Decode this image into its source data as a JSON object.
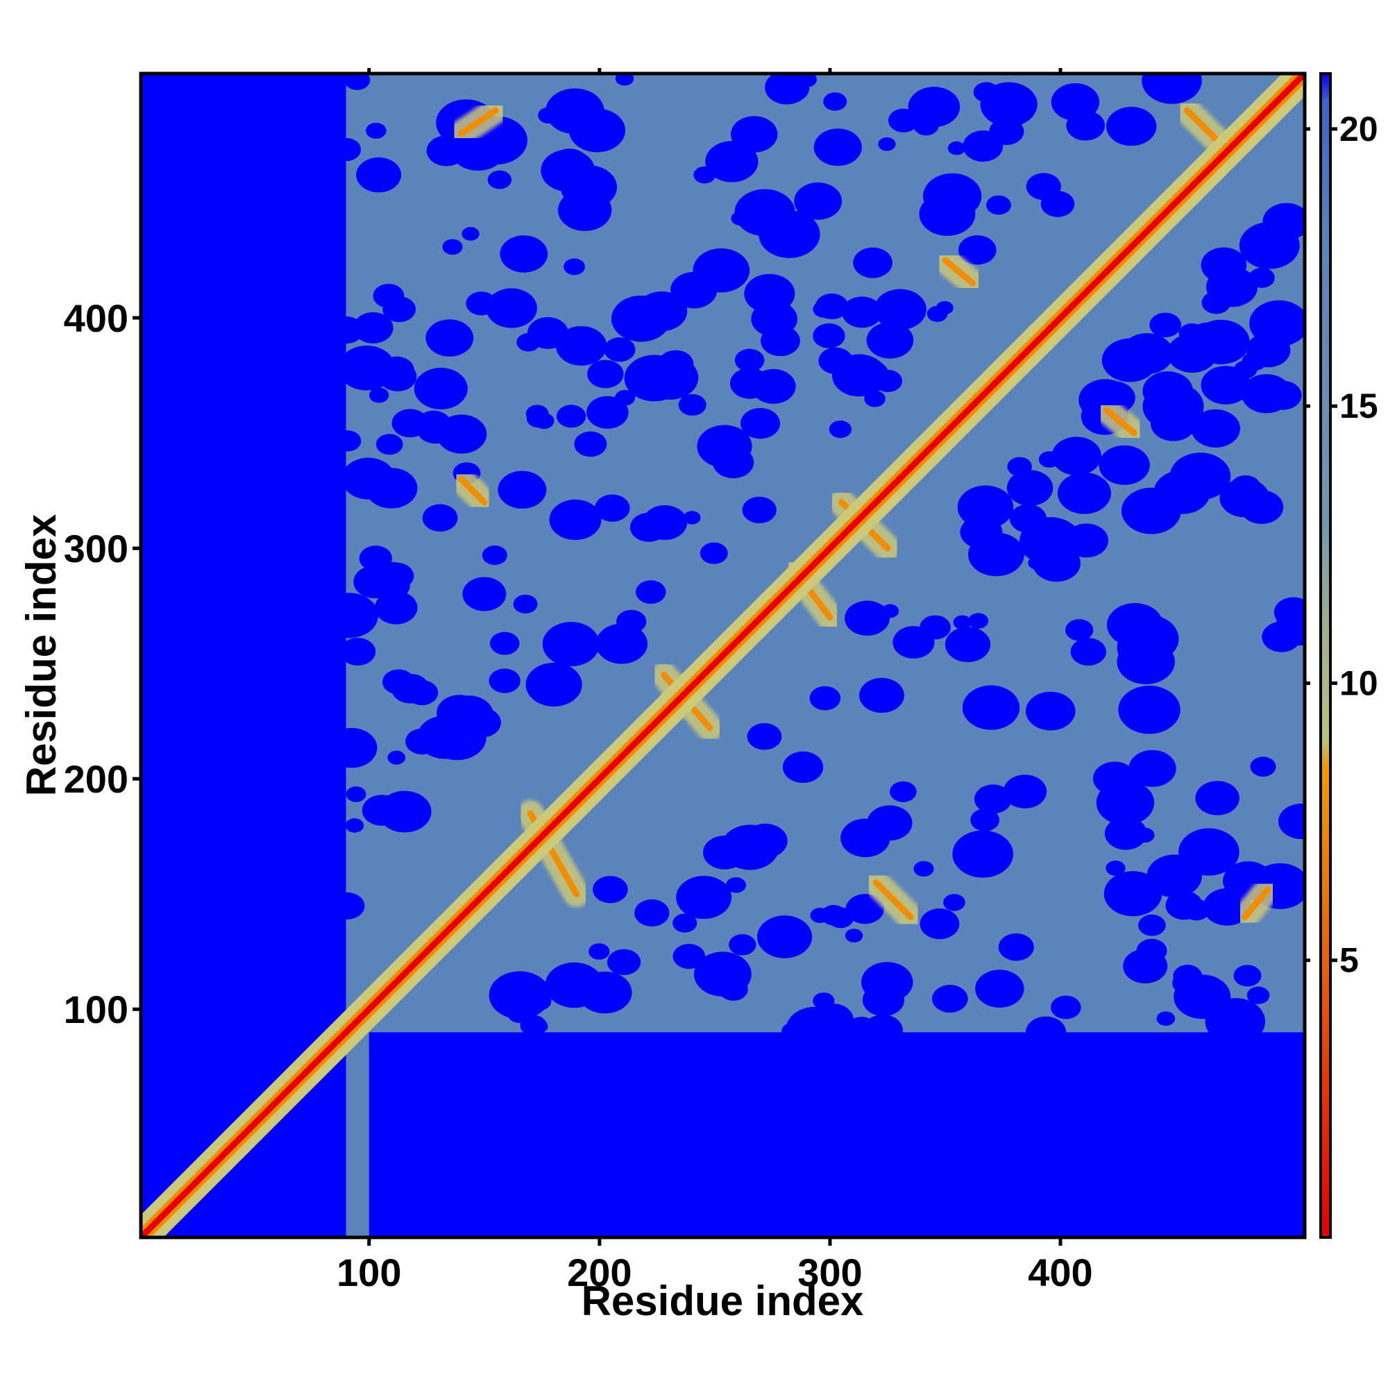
{
  "chart_data": {
    "type": "heatmap",
    "title": "",
    "xlabel": "Residue index",
    "ylabel": "Residue index",
    "xlim": [
      1,
      506
    ],
    "ylim": [
      1,
      506
    ],
    "x_ticks": [
      100,
      200,
      300,
      400
    ],
    "y_ticks": [
      100,
      200,
      300,
      400
    ],
    "colorbar": {
      "range": [
        0,
        21
      ],
      "ticks": [
        5,
        10,
        15,
        20
      ],
      "stops": [
        {
          "value": 0,
          "color": "#e60000"
        },
        {
          "value": 5,
          "color": "#e8620a"
        },
        {
          "value": 8.5,
          "color": "#f29a00"
        },
        {
          "value": 9,
          "color": "#b9c380"
        },
        {
          "value": 11,
          "color": "#9fae8f"
        },
        {
          "value": 13,
          "color": "#6f97b5"
        },
        {
          "value": 18,
          "color": "#5b84ba"
        },
        {
          "value": 20.5,
          "color": "#3f62c8"
        },
        {
          "value": 21,
          "color": "#0000ff"
        }
      ]
    },
    "colors": {
      "far": "#0000ff",
      "mid": "#5b84ba",
      "near": "#ccc97a",
      "contact": "#f28c00",
      "diagonal": "#e60000"
    },
    "regions": {
      "lower_blue_block_y_max": 90,
      "left_blue_block_x_max": 90
    },
    "contact_features": [
      {
        "x1": 236,
        "y1": 236,
        "x2": 236,
        "y2": 236,
        "kind": "diagonal"
      },
      {
        "x1": 170,
        "y1": 185,
        "x2": 190,
        "y2": 150,
        "kind": "antiparallel"
      },
      {
        "x1": 228,
        "y1": 245,
        "x2": 248,
        "y2": 222,
        "kind": "antiparallel"
      },
      {
        "x1": 285,
        "y1": 290,
        "x2": 300,
        "y2": 270,
        "kind": "antiparallel"
      },
      {
        "x1": 305,
        "y1": 320,
        "x2": 325,
        "y2": 300,
        "kind": "antiparallel"
      },
      {
        "x1": 140,
        "y1": 480,
        "x2": 155,
        "y2": 490,
        "kind": "parallel"
      },
      {
        "x1": 455,
        "y1": 490,
        "x2": 470,
        "y2": 475,
        "kind": "antiparallel"
      },
      {
        "x1": 480,
        "y1": 140,
        "x2": 490,
        "y2": 152,
        "kind": "parallel"
      },
      {
        "x1": 320,
        "y1": 155,
        "x2": 335,
        "y2": 140,
        "kind": "parallel"
      },
      {
        "x1": 140,
        "y1": 330,
        "x2": 150,
        "y2": 320,
        "kind": "parallel"
      },
      {
        "x1": 350,
        "y1": 425,
        "x2": 362,
        "y2": 415,
        "kind": "parallel"
      },
      {
        "x1": 420,
        "y1": 360,
        "x2": 432,
        "y2": 350,
        "kind": "parallel"
      }
    ]
  }
}
